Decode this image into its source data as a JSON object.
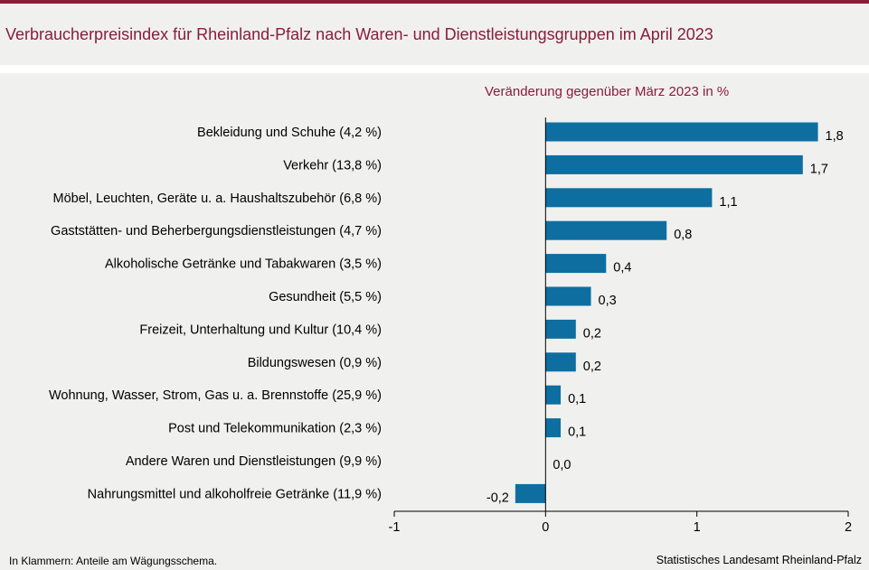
{
  "header": {
    "title": "Verbraucherpreisindex für Rheinland-Pfalz nach Waren- und Dienstleistungsgruppen im April 2023"
  },
  "footer": {
    "note": "In Klammern: Anteile am Wägungsschema.",
    "source": "Statistisches Landesamt Rheinland-Pfalz"
  },
  "colors": {
    "bar": "#0e6ea0",
    "accent": "#8a1d3a",
    "background": "#f0f0ef"
  },
  "chart_data": {
    "type": "bar",
    "orientation": "horizontal",
    "title": "Verbraucherpreisindex für Rheinland-Pfalz nach Waren- und Dienstleistungsgruppen im April 2023",
    "subtitle": "Veränderung gegenüber März 2023 in %",
    "categories": [
      "Bekleidung und Schuhe (4,2 %)",
      "Verkehr (13,8 %)",
      "Möbel, Leuchten, Geräte u. a. Haushaltszubehör (6,8 %)",
      "Gaststätten- und Beherbergungsdienstleistungen (4,7 %)",
      "Alkoholische Getränke und Tabakwaren (3,5 %)",
      "Gesundheit (5,5 %)",
      "Freizeit, Unterhaltung und Kultur (10,4 %)",
      "Bildungswesen (0,9 %)",
      "Wohnung, Wasser, Strom, Gas u. a. Brennstoffe (25,9 %)",
      "Post und Telekommunikation (2,3 %)",
      "Andere Waren und Dienstleistungen (9,9 %)",
      "Nahrungsmittel und alkoholfreie Getränke (11,9 %)"
    ],
    "values": [
      1.8,
      1.7,
      1.1,
      0.8,
      0.4,
      0.3,
      0.2,
      0.2,
      0.1,
      0.1,
      0.0,
      -0.2
    ],
    "value_labels": [
      "1,8",
      "1,7",
      "1,1",
      "0,8",
      "0,4",
      "0,3",
      "0,2",
      "0,2",
      "0,1",
      "0,1",
      "0,0",
      "-0,2"
    ],
    "xlim": [
      -1,
      2
    ],
    "xticks": [
      -1,
      0,
      1,
      2
    ],
    "xtick_labels": [
      "-1",
      "0",
      "1",
      "2"
    ],
    "grid": false,
    "legend": "none"
  }
}
